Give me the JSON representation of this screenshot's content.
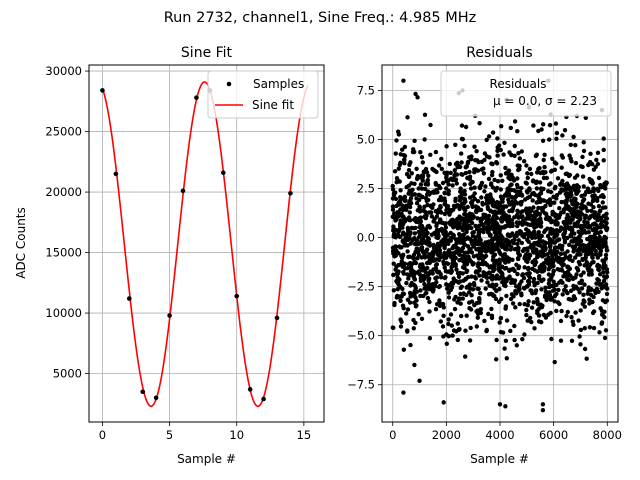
{
  "figure": {
    "suptitle": "Run 2732, channel1, Sine Freq.: 4.985 MHz"
  },
  "chart_data": [
    {
      "type": "scatter",
      "title": "Sine Fit",
      "xlabel": "Sample #",
      "ylabel": "ADC Counts",
      "xlim": [
        -1,
        16.5
      ],
      "ylim": [
        1000,
        30500
      ],
      "xticks": [
        0,
        5,
        10,
        15
      ],
      "yticks": [
        5000,
        10000,
        15000,
        20000,
        25000,
        30000
      ],
      "grid": true,
      "legend_position": "top-right",
      "series": [
        {
          "name": "Samples",
          "kind": "points",
          "color": "#000000",
          "x": [
            0,
            1,
            2,
            3,
            4,
            5,
            6,
            7,
            8,
            9,
            10,
            11,
            12,
            13,
            14
          ],
          "y": [
            28400,
            21500,
            11200,
            3500,
            3000,
            9800,
            20100,
            27800,
            28400,
            21600,
            11400,
            3700,
            2900,
            9600,
            19900
          ]
        },
        {
          "name": "Sine fit",
          "kind": "line",
          "color": "#ff0000",
          "offset": 15700,
          "amplitude": 13400,
          "period": 7.96,
          "phase_peak_at": 7.6,
          "x_range": [
            0,
            15.3
          ]
        }
      ]
    },
    {
      "type": "scatter",
      "title": "Residuals",
      "xlabel": "Sample #",
      "ylabel": "",
      "xlim": [
        -400,
        8400
      ],
      "ylim": [
        -9.4,
        8.8
      ],
      "xticks": [
        0,
        2000,
        4000,
        6000,
        8000
      ],
      "yticks": [
        -7.5,
        -5.0,
        -2.5,
        0.0,
        2.5,
        5.0,
        7.5
      ],
      "grid": true,
      "legend_position": "top-right",
      "series": [
        {
          "name": "Residuals",
          "kind": "points",
          "color": "#000000",
          "count": 8000,
          "mean": 0.0,
          "sigma": 2.23
        }
      ],
      "annotation": "μ = 0.0, σ = 2.23",
      "notable_outliers": [
        {
          "x": 400,
          "y": 8.0
        },
        {
          "x": 400,
          "y": -7.9
        },
        {
          "x": 1900,
          "y": -8.4
        },
        {
          "x": 4000,
          "y": -8.5
        },
        {
          "x": 4200,
          "y": -8.6
        },
        {
          "x": 5600,
          "y": -8.5
        },
        {
          "x": 5600,
          "y": -8.8
        },
        {
          "x": 5800,
          "y": 8.0
        },
        {
          "x": 2600,
          "y": 7.5
        },
        {
          "x": 1000,
          "y": -7.3
        },
        {
          "x": 7800,
          "y": 6.5
        }
      ]
    }
  ]
}
